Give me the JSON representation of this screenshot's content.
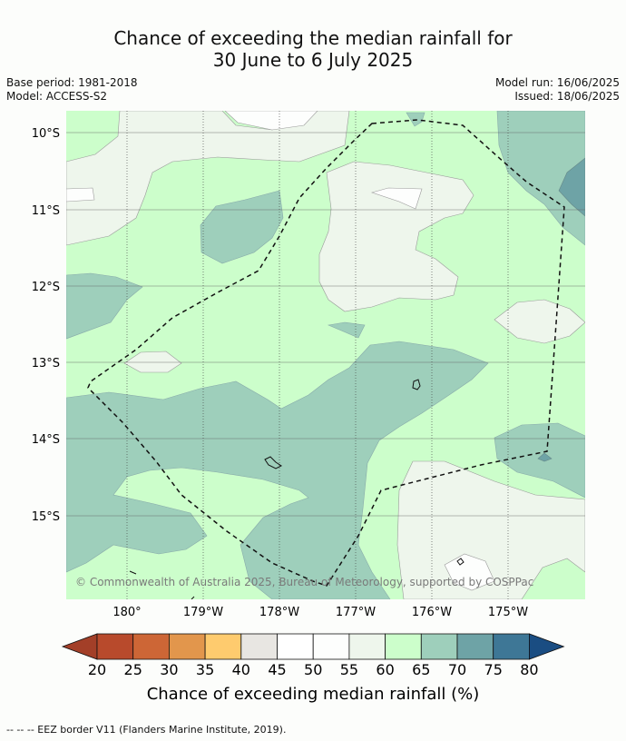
{
  "title_line1": "Chance of exceeding the median rainfall for",
  "title_line2": "30 June to 6 July 2025",
  "base_period": "Base period: 1981-2018",
  "model": "Model: ACCESS-S2",
  "model_run": "Model run: 16/06/2025",
  "issued": "Issued: 18/06/2025",
  "lat_labels": [
    "10°S",
    "11°S",
    "12°S",
    "13°S",
    "14°S",
    "15°S"
  ],
  "lon_labels": [
    "180°",
    "179°W",
    "178°W",
    "177°W",
    "176°W",
    "175°W"
  ],
  "copyright": "© Commonwealth of Australia 2025, Bureau of Meteorology, supported by COSPPac",
  "colorbar": {
    "ticks": [
      "20",
      "25",
      "30",
      "35",
      "40",
      "45",
      "50",
      "55",
      "60",
      "65",
      "70",
      "75",
      "80"
    ],
    "colors": [
      "#a33f28",
      "#b84a2c",
      "#cd6636",
      "#e2964c",
      "#fecb6e",
      "#e8e6e2",
      "#ffffff",
      "#fdfefd",
      "#eef6ec",
      "#ccfecb",
      "#9ecfbb",
      "#6ea3a6",
      "#3e7796",
      "#1a4d82"
    ],
    "label": "Chance of exceeding median rainfall (%)"
  },
  "colors": {
    "c60": "#eef6ec",
    "c65": "#ccfecb",
    "c70": "#9ecfbb",
    "c75": "#6ea3a6",
    "white": "#fdfefd"
  },
  "footer": "--  --  -- EEZ border V11 (Flanders Marine Institute, 2019)."
}
